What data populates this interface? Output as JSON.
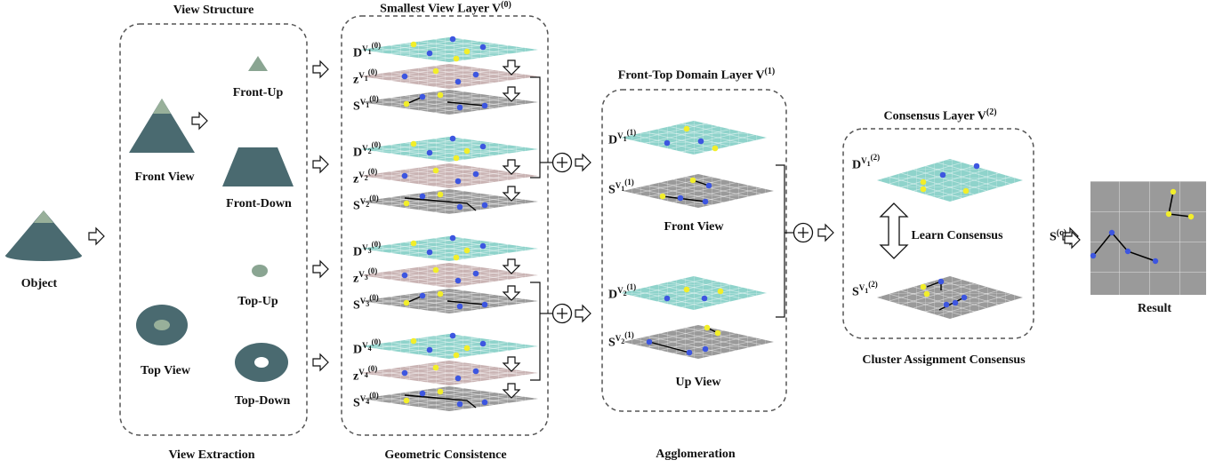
{
  "object_label": "Object",
  "section_view_structure": "View Structure",
  "section_view_extraction": "View Extraction",
  "section_smallest_layer": "Smallest View Layer V",
  "section_smallest_layer_sup": "(0)",
  "section_geometric_consistence": "Geometric Consistence",
  "section_front_top_layer": "Front-Top Domain Layer V",
  "section_front_top_layer_sup": "(1)",
  "section_agglomeration": "Agglomeration",
  "section_consensus_layer": "Consensus Layer V",
  "section_consensus_layer_sup": "(2)",
  "section_cluster_assignment": "Cluster Assignment Consensus",
  "view_labels": {
    "front_view": "Front View",
    "top_view": "Top View",
    "front_up": "Front-Up",
    "front_down": "Front-Down",
    "top_up": "Top-Up",
    "top_down": "Top-Down"
  },
  "layer1_labels": {
    "front_view": "Front View",
    "up_view": "Up View"
  },
  "learn_consensus": "Learn Consensus",
  "result_symbol": "S",
  "result_symbol_sup": "(c)",
  "result_label": "Result",
  "layer0_symbols": [
    {
      "letter": "D",
      "v": "1",
      "sup": "(0)"
    },
    {
      "letter": "z",
      "v": "1",
      "sup": "(0)"
    },
    {
      "letter": "S",
      "v": "1",
      "sup": "(0)"
    },
    {
      "letter": "D",
      "v": "2",
      "sup": "(0)"
    },
    {
      "letter": "z",
      "v": "2",
      "sup": "(0)"
    },
    {
      "letter": "S",
      "v": "2",
      "sup": "(0)"
    },
    {
      "letter": "D",
      "v": "3",
      "sup": "(0)"
    },
    {
      "letter": "z",
      "v": "3",
      "sup": "(0)"
    },
    {
      "letter": "S",
      "v": "3",
      "sup": "(0)"
    },
    {
      "letter": "D",
      "v": "4",
      "sup": "(0)"
    },
    {
      "letter": "z",
      "v": "4",
      "sup": "(0)"
    },
    {
      "letter": "S",
      "v": "4",
      "sup": "(0)"
    }
  ],
  "layer1_symbols": [
    {
      "letter": "D",
      "v": "1",
      "sup": "(1)"
    },
    {
      "letter": "S",
      "v": "1",
      "sup": "(1)"
    },
    {
      "letter": "D",
      "v": "2",
      "sup": "(1)"
    },
    {
      "letter": "S",
      "v": "2",
      "sup": "(1)"
    }
  ],
  "layer2_symbols": [
    {
      "letter": "D",
      "v": "1",
      "sup": "(2)"
    },
    {
      "letter": "S",
      "v": "1",
      "sup": "(2)"
    }
  ],
  "colors": {
    "d_plane": "#8fd3cb",
    "z_plane": "#c9b3b3",
    "s_plane": "#9a9a9a",
    "blue_dot": "#3d56e0",
    "yellow_dot": "#f2ee2a",
    "cone_dark": "#4a6a70",
    "cone_tip": "#98b09a",
    "dash_border": "#555555"
  }
}
